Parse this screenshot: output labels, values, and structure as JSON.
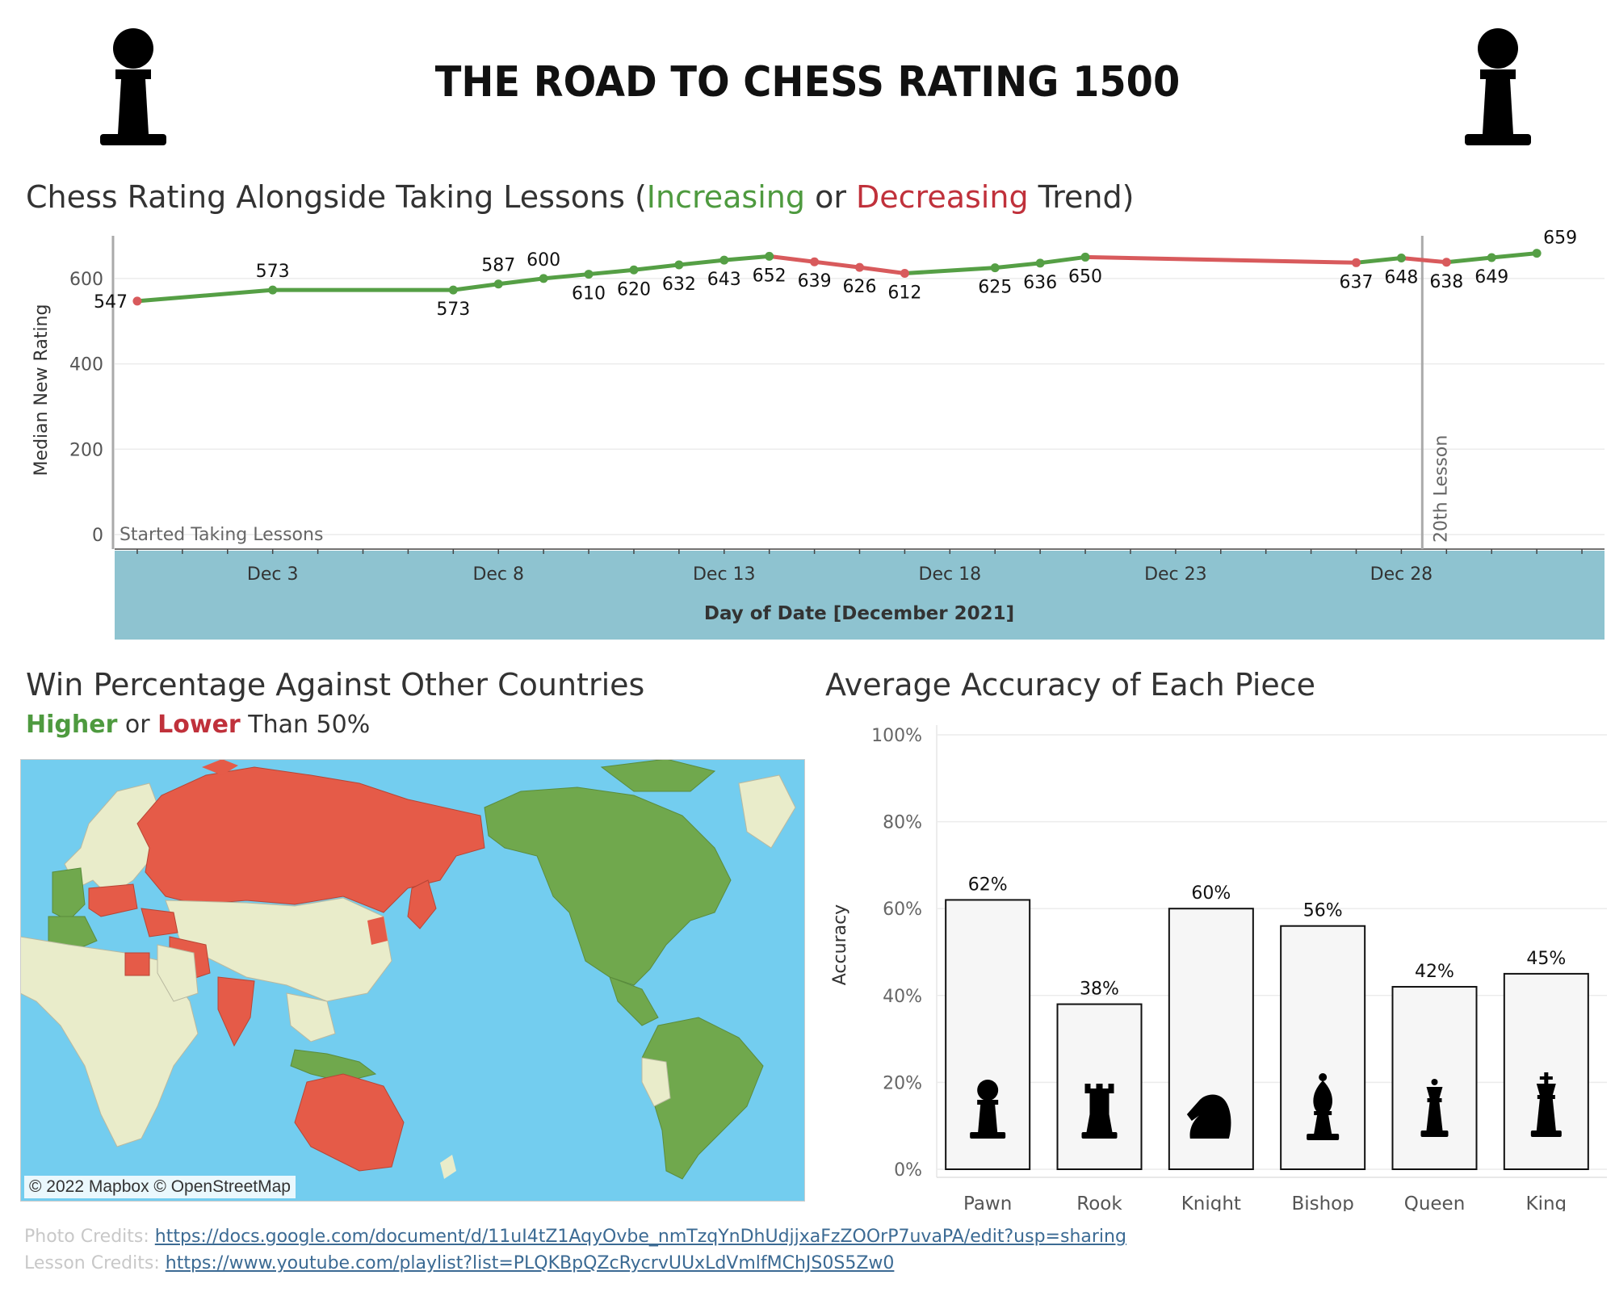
{
  "title": "THE ROAD TO CHESS RATING 1500",
  "icons": {
    "header_left": "pawn-icon",
    "header_right": "pawn-icon"
  },
  "colors": {
    "increase": "#559f45",
    "decrease": "#d85a5c",
    "axis_band": "#8ec3d0",
    "map_water": "#73cdef",
    "map_land": "#e9ecca",
    "map_higher": "#70a84d",
    "map_lower": "#e55b48"
  },
  "line_title": {
    "prefix": "Chess Rating Alongside Taking Lessons (",
    "increasing": "Increasing",
    "or": " or ",
    "decreasing": "Decreasing",
    "suffix": " Trend)"
  },
  "map_title": "Win Percentage Against Other Countries",
  "map_subtitle": {
    "higher": "Higher",
    "or": " or ",
    "lower": "Lower",
    "rest": " Than 50%"
  },
  "map_attribution": "© 2022 Mapbox © OpenStreetMap",
  "bar_title": "Average Accuracy of Each Piece",
  "credits": {
    "photo_label": "Photo Credits: ",
    "photo_url": "https://docs.google.com/document/d/11uI4tZ1AqyOvbe_nmTzqYnDhUdjjxaFzZOOrP7uvaPA/edit?usp=sharing",
    "lesson_label": "Lesson Credits:  ",
    "lesson_url": "https://www.youtube.com/playlist?list=PLQKBpQZcRycrvUUxLdVmlfMChJS0S5Zw0"
  },
  "chart_data": [
    {
      "type": "line",
      "ylabel": "Median New Rating",
      "xlabel": "Day of Date [December 2021]",
      "ylim": [
        0,
        700
      ],
      "yticks": [
        0,
        200,
        400,
        600
      ],
      "xticks": [
        {
          "day": 3,
          "label": "Dec 3"
        },
        {
          "day": 8,
          "label": "Dec 8"
        },
        {
          "day": 13,
          "label": "Dec 13"
        },
        {
          "day": 18,
          "label": "Dec 18"
        },
        {
          "day": 23,
          "label": "Dec 23"
        },
        {
          "day": 28,
          "label": "Dec 28"
        }
      ],
      "x_range_days": [
        -0.5,
        32.5
      ],
      "grid": true,
      "reference_lines": [
        {
          "day": 0,
          "label": "Started Taking Lessons"
        },
        {
          "day": 29,
          "label": "20th Lesson"
        }
      ],
      "points": [
        {
          "day": 0,
          "rating": 547,
          "label": "547"
        },
        {
          "day": 3,
          "rating": 573,
          "label": "573"
        },
        {
          "day": 7,
          "rating": 573,
          "label": "573"
        },
        {
          "day": 8,
          "rating": 587,
          "label": "587"
        },
        {
          "day": 9,
          "rating": 600,
          "label": "600"
        },
        {
          "day": 10,
          "rating": 610,
          "label": "610"
        },
        {
          "day": 11,
          "rating": 620,
          "label": "620"
        },
        {
          "day": 12,
          "rating": 632,
          "label": "632"
        },
        {
          "day": 13,
          "rating": 643,
          "label": "643"
        },
        {
          "day": 14,
          "rating": 652,
          "label": "652"
        },
        {
          "day": 15,
          "rating": 639,
          "label": "639"
        },
        {
          "day": 16,
          "rating": 626,
          "label": "626"
        },
        {
          "day": 17,
          "rating": 612,
          "label": "612"
        },
        {
          "day": 19,
          "rating": 625,
          "label": "625"
        },
        {
          "day": 20,
          "rating": 636,
          "label": "636"
        },
        {
          "day": 21,
          "rating": 650,
          "label": "650"
        },
        {
          "day": 27,
          "rating": 637,
          "label": "637"
        },
        {
          "day": 28,
          "rating": 648,
          "label": "648"
        },
        {
          "day": 29,
          "rating": 638,
          "label": "638"
        },
        {
          "day": 30,
          "rating": 649,
          "label": "649"
        },
        {
          "day": 31,
          "rating": 659,
          "label": "659"
        }
      ]
    },
    {
      "type": "bar",
      "ylabel": "Accuracy",
      "ylim": [
        0,
        100
      ],
      "yticks": [
        {
          "v": 0,
          "label": "0%"
        },
        {
          "v": 20,
          "label": "20%"
        },
        {
          "v": 40,
          "label": "40%"
        },
        {
          "v": 60,
          "label": "60%"
        },
        {
          "v": 80,
          "label": "80%"
        },
        {
          "v": 100,
          "label": "100%"
        }
      ],
      "categories": [
        "Pawn",
        "Rook",
        "Knight",
        "Bishop",
        "Queen",
        "King"
      ],
      "values": [
        62,
        38,
        60,
        56,
        42,
        45
      ],
      "value_labels": [
        "62%",
        "38%",
        "60%",
        "56%",
        "42%",
        "45%"
      ],
      "icons": [
        "pawn-icon",
        "rook-icon",
        "knight-icon",
        "bishop-icon",
        "queen-icon",
        "king-icon"
      ]
    }
  ]
}
